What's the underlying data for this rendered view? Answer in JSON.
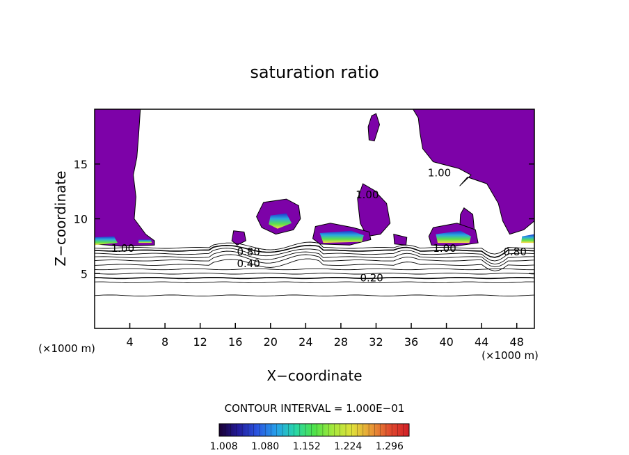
{
  "chart_data": {
    "type": "contour",
    "title": "saturation ratio",
    "xlabel": "X−coordinate",
    "ylabel": "Z−coordinate",
    "x_unit_label": "(×1000 m)",
    "y_unit_label": "(×1000 m)",
    "xlim": [
      0,
      50
    ],
    "ylim": [
      0,
      20
    ],
    "x_ticks": [
      4,
      8,
      12,
      16,
      20,
      24,
      28,
      32,
      36,
      40,
      44,
      48
    ],
    "y_ticks": [
      5,
      10,
      15
    ],
    "contour_interval_text": "CONTOUR INTERVAL = 1.000E−01",
    "contour_labels": [
      {
        "text": "1.00",
        "x": 3.2,
        "y": 7.3
      },
      {
        "text": "0.80",
        "x": 17.5,
        "y": 7.0
      },
      {
        "text": "0.40",
        "x": 17.5,
        "y": 5.9
      },
      {
        "text": "0.20",
        "x": 31.5,
        "y": 4.6
      },
      {
        "text": "1.00",
        "x": 39.8,
        "y": 7.3
      },
      {
        "text": "0.80",
        "x": 47.8,
        "y": 7.0
      },
      {
        "text": "1.00",
        "x": 39.2,
        "y": 14.2
      },
      {
        "text": "1.00",
        "x": 31.0,
        "y": 12.2
      }
    ],
    "colorbar": {
      "ticks": [
        "1.008",
        "1.080",
        "1.152",
        "1.224",
        "1.296"
      ],
      "range": [
        1.0,
        1.33
      ],
      "colors": [
        "#1a0033",
        "#221a9a",
        "#2a55e0",
        "#26a0ea",
        "#28d6a8",
        "#4ee24a",
        "#a6e83c",
        "#e0e03a",
        "#e89a36",
        "#e04a2e",
        "#d11e26"
      ]
    },
    "saturated_fill_color": "#7d02a8",
    "contour_line_color": "#000000"
  }
}
